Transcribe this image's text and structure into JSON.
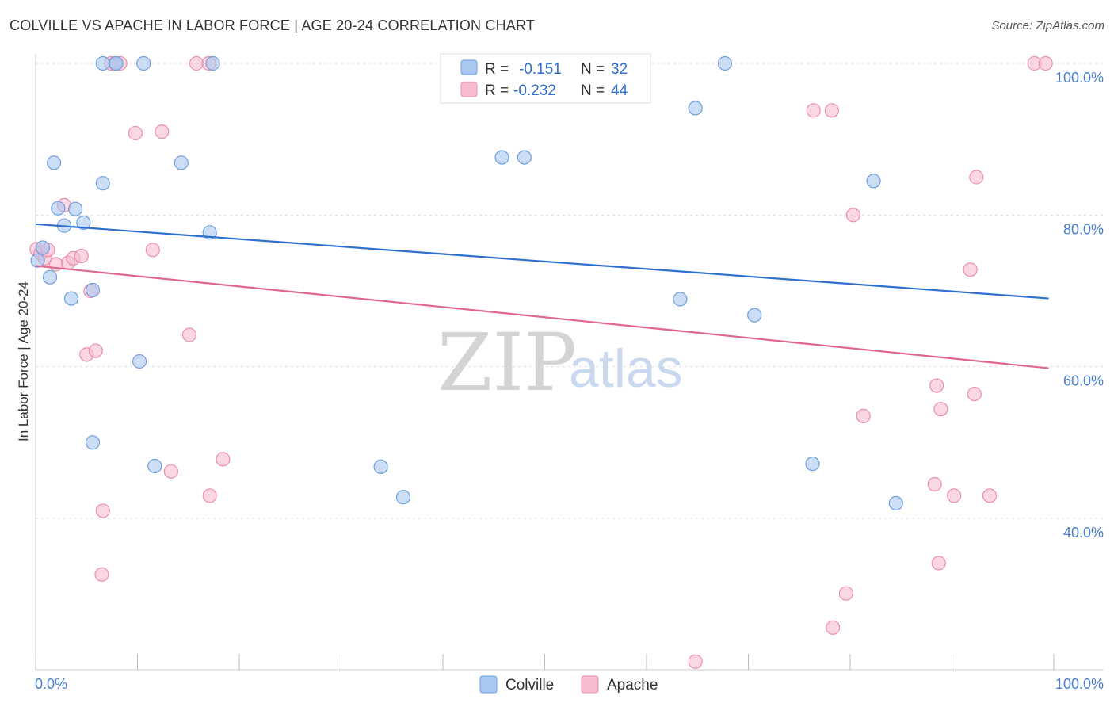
{
  "title": "COLVILLE VS APACHE IN LABOR FORCE | AGE 20-24 CORRELATION CHART",
  "source": "Source: ZipAtlas.com",
  "watermark": {
    "zip": "ZIP",
    "atlas": "atlas"
  },
  "legend": {
    "r_label": "R =",
    "n_label": "N =",
    "colville": {
      "r": "-0.151",
      "n": "32"
    },
    "apache": {
      "r": "-0.232",
      "n": "44"
    }
  },
  "bottom_legend": {
    "colville": "Colville",
    "apache": "Apache"
  },
  "colors": {
    "colville_fill": "#a9c8f0",
    "colville_stroke": "#6f9fde",
    "colville_line": "#2f6fd0",
    "apache_fill": "#f7bcd0",
    "apache_stroke": "#eb8fae",
    "apache_line": "#e06690",
    "axis_tick_color": "#4a7fd0",
    "grid": "#dddddd"
  },
  "chart_data": {
    "type": "scatter",
    "title": "COLVILLE VS APACHE IN LABOR FORCE | AGE 20-24 CORRELATION CHART",
    "xlabel": "",
    "ylabel": "In Labor Force | Age 20-24",
    "xlim": [
      0,
      100
    ],
    "ylim": [
      20,
      102
    ],
    "x_tick_labels": [
      "0.0%",
      "100.0%"
    ],
    "y_ticks": [
      40,
      60,
      80,
      100
    ],
    "y_tick_labels": [
      "40.0%",
      "60.0%",
      "80.0%",
      "100.0%"
    ],
    "series": [
      {
        "name": "Colville",
        "r": -0.151,
        "n": 32,
        "trend": {
          "x": [
            0,
            99.5
          ],
          "y": [
            78.8,
            69.0
          ]
        },
        "points": [
          [
            0.2,
            74.0
          ],
          [
            0.7,
            75.7
          ],
          [
            1.4,
            71.8
          ],
          [
            1.8,
            86.9
          ],
          [
            2.2,
            80.9
          ],
          [
            2.8,
            78.6
          ],
          [
            3.5,
            69.0
          ],
          [
            3.9,
            80.8
          ],
          [
            4.7,
            79.0
          ],
          [
            5.6,
            70.1
          ],
          [
            5.6,
            50.0
          ],
          [
            6.6,
            84.2
          ],
          [
            6.6,
            100.0
          ],
          [
            7.9,
            100.0
          ],
          [
            7.9,
            100.0
          ],
          [
            10.2,
            60.7
          ],
          [
            10.6,
            100.0
          ],
          [
            11.7,
            46.9
          ],
          [
            14.3,
            86.9
          ],
          [
            17.1,
            77.7
          ],
          [
            17.4,
            100.0
          ],
          [
            33.9,
            46.8
          ],
          [
            36.1,
            42.8
          ],
          [
            45.8,
            87.6
          ],
          [
            48.0,
            87.6
          ],
          [
            63.3,
            68.9
          ],
          [
            64.8,
            94.1
          ],
          [
            67.7,
            100.0
          ],
          [
            70.6,
            66.8
          ],
          [
            76.3,
            47.2
          ],
          [
            82.3,
            84.5
          ],
          [
            84.5,
            42.0
          ]
        ]
      },
      {
        "name": "Apache",
        "r": -0.232,
        "n": 44,
        "trend": {
          "x": [
            0,
            99.5
          ],
          "y": [
            73.3,
            59.8
          ]
        },
        "points": [
          [
            0.1,
            75.5
          ],
          [
            0.5,
            75.0
          ],
          [
            0.9,
            74.3
          ],
          [
            1.2,
            75.4
          ],
          [
            2.0,
            73.5
          ],
          [
            2.8,
            81.3
          ],
          [
            3.2,
            73.7
          ],
          [
            3.7,
            74.3
          ],
          [
            4.5,
            74.6
          ],
          [
            5.0,
            61.6
          ],
          [
            5.4,
            70.0
          ],
          [
            5.9,
            62.1
          ],
          [
            6.5,
            32.6
          ],
          [
            6.6,
            41.0
          ],
          [
            7.4,
            100.0
          ],
          [
            7.8,
            100.0
          ],
          [
            8.3,
            100.0
          ],
          [
            9.8,
            90.8
          ],
          [
            11.5,
            75.4
          ],
          [
            12.4,
            91.0
          ],
          [
            13.3,
            46.2
          ],
          [
            15.1,
            64.2
          ],
          [
            15.8,
            100.0
          ],
          [
            17.0,
            100.0
          ],
          [
            17.1,
            43.0
          ],
          [
            18.4,
            47.8
          ],
          [
            64.8,
            21.1
          ],
          [
            76.4,
            93.8
          ],
          [
            78.2,
            93.8
          ],
          [
            78.3,
            25.6
          ],
          [
            79.6,
            30.1
          ],
          [
            80.3,
            80.0
          ],
          [
            81.3,
            53.5
          ],
          [
            88.5,
            57.5
          ],
          [
            88.3,
            44.5
          ],
          [
            88.7,
            34.1
          ],
          [
            88.9,
            54.4
          ],
          [
            90.2,
            43.0
          ],
          [
            91.8,
            72.8
          ],
          [
            92.2,
            56.4
          ],
          [
            92.4,
            85.0
          ],
          [
            93.7,
            43.0
          ],
          [
            98.1,
            100.0
          ],
          [
            99.2,
            100.0
          ]
        ]
      }
    ]
  }
}
